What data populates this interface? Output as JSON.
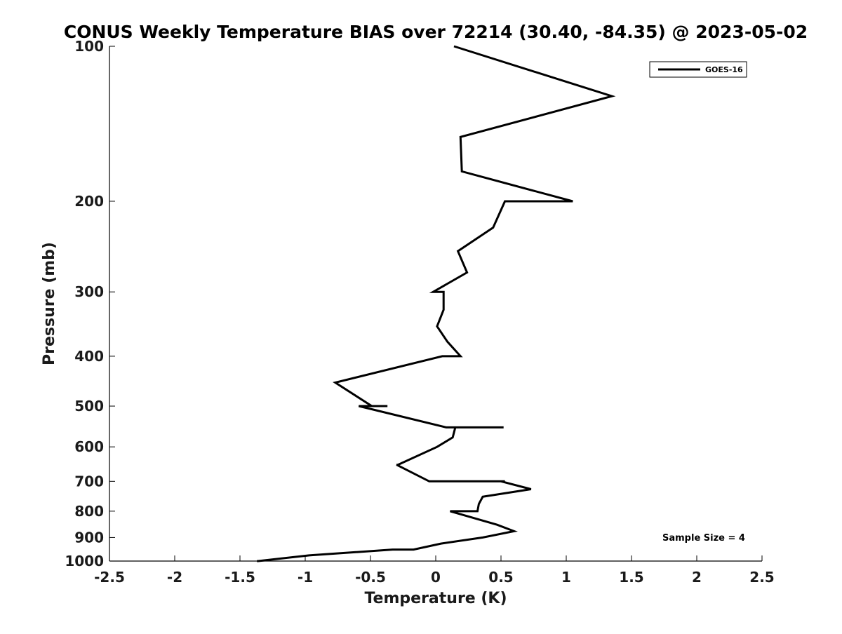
{
  "chart_data": {
    "type": "line",
    "title": "CONUS Weekly Temperature BIAS over 72214 (30.40, -84.35) @ 2023-05-02",
    "xlabel": "Temperature (K)",
    "ylabel": "Pressure (mb)",
    "xlim": [
      -2.5,
      2.5
    ],
    "ylim": [
      1000,
      100
    ],
    "y_scale": "log",
    "y_reversed": true,
    "grid": false,
    "x_ticks": [
      "-2.5",
      "-2",
      "-1.5",
      "-1",
      "-0.5",
      "0",
      "0.5",
      "1",
      "1.5",
      "2",
      "2.5"
    ],
    "y_ticks": [
      "100",
      "200",
      "300",
      "400",
      "500",
      "600",
      "700",
      "800",
      "900",
      "1000"
    ],
    "legend": {
      "position": "top-right",
      "entries": [
        "GOES-16"
      ]
    },
    "annotation": "Sample Size = 4",
    "series": [
      {
        "name": "GOES-16",
        "color": "#000000",
        "points": [
          {
            "x": 0.14,
            "y": 100
          },
          {
            "x": 1.35,
            "y": 125
          },
          {
            "x": 0.19,
            "y": 150
          },
          {
            "x": 0.2,
            "y": 175
          },
          {
            "x": 1.05,
            "y": 200
          },
          {
            "x": 0.53,
            "y": 200
          },
          {
            "x": 0.44,
            "y": 225
          },
          {
            "x": 0.17,
            "y": 250
          },
          {
            "x": 0.24,
            "y": 275
          },
          {
            "x": -0.02,
            "y": 300
          },
          {
            "x": 0.06,
            "y": 300
          },
          {
            "x": 0.06,
            "y": 325
          },
          {
            "x": 0.01,
            "y": 350
          },
          {
            "x": 0.09,
            "y": 375
          },
          {
            "x": 0.19,
            "y": 400
          },
          {
            "x": 0.05,
            "y": 400
          },
          {
            "x": -0.77,
            "y": 450
          },
          {
            "x": -0.49,
            "y": 500
          },
          {
            "x": -0.37,
            "y": 500
          },
          {
            "x": -0.59,
            "y": 500
          },
          {
            "x": 0.08,
            "y": 550
          },
          {
            "x": 0.52,
            "y": 550
          },
          {
            "x": 0.15,
            "y": 550
          },
          {
            "x": 0.13,
            "y": 575
          },
          {
            "x": 0.01,
            "y": 600
          },
          {
            "x": -0.29,
            "y": 650
          },
          {
            "x": -0.3,
            "y": 650
          },
          {
            "x": -0.05,
            "y": 700
          },
          {
            "x": 0.53,
            "y": 700
          },
          {
            "x": 0.5,
            "y": 700
          },
          {
            "x": 0.73,
            "y": 725
          },
          {
            "x": 0.36,
            "y": 750
          },
          {
            "x": 0.33,
            "y": 775
          },
          {
            "x": 0.32,
            "y": 800
          },
          {
            "x": 0.11,
            "y": 800
          },
          {
            "x": 0.47,
            "y": 850
          },
          {
            "x": 0.6,
            "y": 875
          },
          {
            "x": 0.36,
            "y": 900
          },
          {
            "x": 0.04,
            "y": 925
          },
          {
            "x": -0.17,
            "y": 950
          },
          {
            "x": -0.33,
            "y": 950
          },
          {
            "x": -0.97,
            "y": 975
          },
          {
            "x": -1.36,
            "y": 1000
          },
          {
            "x": -1.37,
            "y": 1000
          }
        ]
      }
    ]
  }
}
